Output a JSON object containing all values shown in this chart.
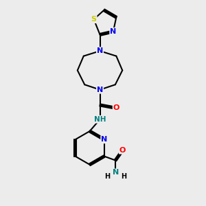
{
  "background_color": "#ececec",
  "bond_color": "#000000",
  "atom_colors": {
    "N": "#0000ee",
    "O": "#ff0000",
    "S": "#cccc00",
    "NH": "#008080",
    "C": "#000000"
  },
  "figsize": [
    3.0,
    3.0
  ],
  "dpi": 100
}
